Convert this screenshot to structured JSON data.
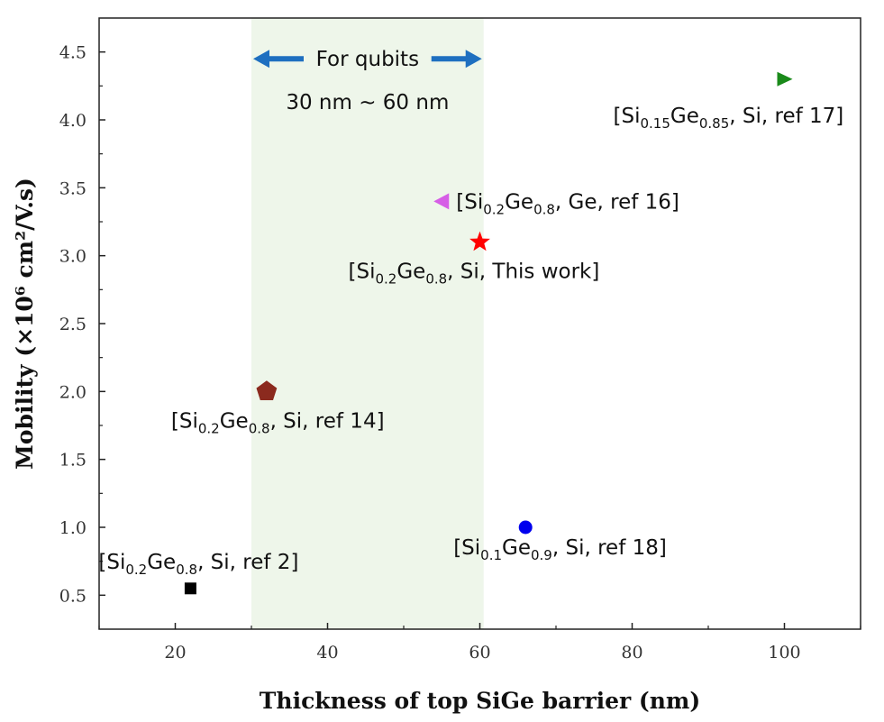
{
  "chart_data": {
    "type": "scatter",
    "xlabel": "Thickness of top SiGe barrier (nm)",
    "ylabel": "Mobility (×10⁶ cm²/V.s)",
    "xlim": [
      10,
      110
    ],
    "ylim": [
      0.25,
      4.75
    ],
    "xticks": [
      20,
      40,
      60,
      80,
      100
    ],
    "yticks": [
      0.5,
      1.0,
      1.5,
      2.0,
      2.5,
      3.0,
      3.5,
      4.0,
      4.5
    ],
    "x_tick_labels": [
      "20",
      "40",
      "60",
      "80",
      "100"
    ],
    "y_tick_labels": [
      "0.5",
      "1.0",
      "1.5",
      "2.0",
      "2.5",
      "3.0",
      "3.5",
      "4.0",
      "4.5"
    ],
    "band": {
      "x_range": [
        30,
        60.5
      ],
      "label_line1": "For qubits",
      "label_line2": "30 nm ~ 60 nm",
      "color": "#eef6ea",
      "arrow_color": "#1e6fc0"
    },
    "points": [
      {
        "id": "ref2",
        "x": 22,
        "y": 0.55,
        "marker": "square",
        "color": "#000000",
        "label": {
          "parts": [
            [
              "[Si",
              ""
            ],
            [
              "0.2",
              "sub"
            ],
            [
              "Ge",
              ""
            ],
            [
              "0.8",
              "sub"
            ],
            [
              ", Si, ref 2]",
              ""
            ]
          ]
        }
      },
      {
        "id": "ref14",
        "x": 32,
        "y": 2.0,
        "marker": "pentagon",
        "color": "#8b2a1e",
        "label": {
          "parts": [
            [
              "[Si",
              ""
            ],
            [
              "0.2",
              "sub"
            ],
            [
              "Ge",
              ""
            ],
            [
              "0.8",
              "sub"
            ],
            [
              ", Si, ref 14]",
              ""
            ]
          ]
        }
      },
      {
        "id": "ref16",
        "x": 55,
        "y": 3.4,
        "marker": "triangle-left",
        "color": "#d65ee6",
        "label": {
          "parts": [
            [
              "[Si",
              ""
            ],
            [
              "0.2",
              "sub"
            ],
            [
              "Ge",
              ""
            ],
            [
              "0.8",
              "sub"
            ],
            [
              ", Ge, ref 16]",
              ""
            ]
          ]
        }
      },
      {
        "id": "this-work",
        "x": 60,
        "y": 3.1,
        "marker": "star",
        "color": "#ff0000",
        "label": {
          "parts": [
            [
              "[Si",
              ""
            ],
            [
              "0.2",
              "sub"
            ],
            [
              "Ge",
              ""
            ],
            [
              "0.8",
              "sub"
            ],
            [
              ", Si, This work]",
              ""
            ]
          ]
        }
      },
      {
        "id": "ref18",
        "x": 66,
        "y": 1.0,
        "marker": "circle",
        "color": "#0000ee",
        "label": {
          "parts": [
            [
              "[Si",
              ""
            ],
            [
              "0.1",
              "sub"
            ],
            [
              "Ge",
              ""
            ],
            [
              "0.9",
              "sub"
            ],
            [
              ", Si, ref 18]",
              ""
            ]
          ]
        }
      },
      {
        "id": "ref17",
        "x": 100,
        "y": 4.3,
        "marker": "triangle-right",
        "color": "#1a8a1a",
        "label": {
          "parts": [
            [
              "[Si",
              ""
            ],
            [
              "0.15",
              "sub"
            ],
            [
              "Ge",
              ""
            ],
            [
              "0.85",
              "sub"
            ],
            [
              ", Si, ref 17]",
              ""
            ]
          ]
        }
      }
    ]
  }
}
